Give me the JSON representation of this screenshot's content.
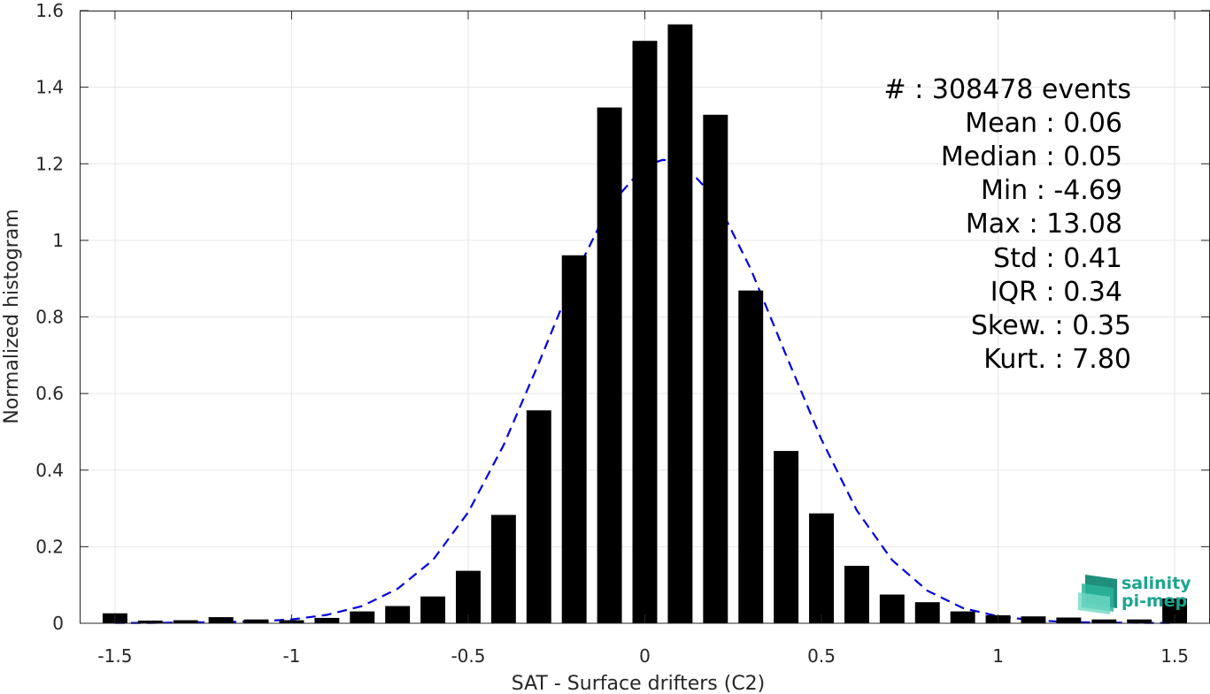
{
  "chart_data": {
    "type": "bar",
    "xlabel": "SAT - Surface drifters (C2)",
    "ylabel": "Normalized histogram",
    "xlim": [
      -1.6,
      1.6
    ],
    "ylim": [
      0,
      1.6
    ],
    "grid": true,
    "xticks": [
      "-1.5",
      "-1",
      "-0.5",
      "0",
      "0.5",
      "1",
      "1.5"
    ],
    "xtick_values": [
      -1.5,
      -1,
      -0.5,
      0,
      0.5,
      1,
      1.5
    ],
    "yticks": [
      "0",
      "0.2",
      "0.4",
      "0.6",
      "0.8",
      "1",
      "1.2",
      "1.4",
      "1.6"
    ],
    "ytick_values": [
      0,
      0.2,
      0.4,
      0.6,
      0.8,
      1,
      1.2,
      1.4,
      1.6
    ],
    "bar_width": 0.07,
    "bar_color": "#000000",
    "bars": {
      "x": [
        -1.5,
        -1.4,
        -1.3,
        -1.2,
        -1.1,
        -1.0,
        -0.9,
        -0.8,
        -0.7,
        -0.6,
        -0.5,
        -0.4,
        -0.3,
        -0.2,
        -0.1,
        0.0,
        0.1,
        0.2,
        0.3,
        0.4,
        0.5,
        0.6,
        0.7,
        0.8,
        0.9,
        1.0,
        1.1,
        1.2,
        1.3,
        1.4,
        1.5
      ],
      "values": [
        0.026,
        0.007,
        0.008,
        0.016,
        0.01,
        0.008,
        0.014,
        0.031,
        0.045,
        0.07,
        0.137,
        0.283,
        0.556,
        0.961,
        1.347,
        1.521,
        1.564,
        1.328,
        0.869,
        0.45,
        0.287,
        0.15,
        0.075,
        0.055,
        0.031,
        0.021,
        0.018,
        0.015,
        0.01,
        0.01,
        0.065
      ]
    },
    "fit_curve": {
      "style": "dashed",
      "color": "#0000dd",
      "x": [
        -1.5,
        -1.4,
        -1.3,
        -1.2,
        -1.1,
        -1.0,
        -0.9,
        -0.8,
        -0.7,
        -0.6,
        -0.5,
        -0.4,
        -0.3,
        -0.2,
        -0.1,
        0.0,
        0.05,
        0.1,
        0.2,
        0.3,
        0.4,
        0.5,
        0.6,
        0.7,
        0.8,
        0.9,
        1.0,
        1.1,
        1.2,
        1.3,
        1.4,
        1.5
      ],
      "y": [
        0.001,
        0.001,
        0.002,
        0.003,
        0.005,
        0.01,
        0.022,
        0.045,
        0.09,
        0.165,
        0.29,
        0.465,
        0.68,
        0.905,
        1.09,
        1.195,
        1.21,
        1.208,
        1.11,
        0.925,
        0.7,
        0.48,
        0.295,
        0.165,
        0.085,
        0.04,
        0.018,
        0.008,
        0.003,
        0.002,
        0.001,
        0.001
      ]
    },
    "stats": [
      {
        "label": "#  ",
        "value": "308478 events"
      },
      {
        "label": "Mean",
        "value": "0.06"
      },
      {
        "label": "Median",
        "value": "0.05"
      },
      {
        "label": "Min",
        "value": "-4.69"
      },
      {
        "label": "Max",
        "value": "13.08"
      },
      {
        "label": "Std",
        "value": "0.41"
      },
      {
        "label": "IQR",
        "value": "0.34"
      },
      {
        "label": "Skew.",
        "value": "0.35"
      },
      {
        "label": "Kurt.",
        "value": "7.80"
      }
    ]
  },
  "logo": {
    "line1": "salinity",
    "line2": "pi-mep"
  }
}
